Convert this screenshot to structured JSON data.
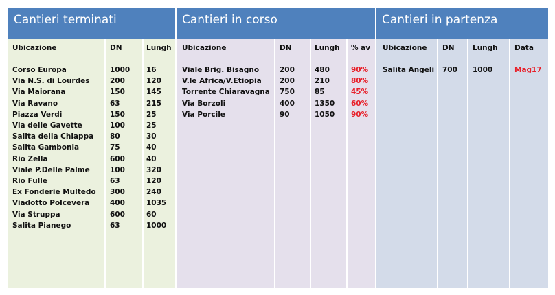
{
  "sections": [
    {
      "title": "Cantieri terminati",
      "columns": [
        "Ubicazione",
        "DN",
        "Lungh"
      ],
      "rows": [
        [
          "Corso Europa",
          1000,
          16
        ],
        [
          "Via N.S. di Lourdes",
          200,
          120
        ],
        [
          "Via Maiorana",
          150,
          145
        ],
        [
          "Via Ravano",
          63,
          215
        ],
        [
          "Piazza Verdi",
          150,
          25
        ],
        [
          "Via delle Gavette",
          100,
          25
        ],
        [
          "Salita della Chiappa",
          80,
          30
        ],
        [
          "Salita Gambonia",
          75,
          40
        ],
        [
          "Rio Zella",
          600,
          40
        ],
        [
          "Viale P.Delle Palme",
          100,
          320
        ],
        [
          "Rio Fulle",
          63,
          120
        ],
        [
          "Ex Fonderie Multedo",
          300,
          240
        ],
        [
          "Viadotto Polcevera",
          400,
          1035
        ],
        [
          "Via Struppa",
          600,
          60
        ],
        [
          "Salita Pianego",
          63,
          1000
        ]
      ]
    },
    {
      "title": "Cantieri in corso",
      "columns": [
        "Ubicazione",
        "DN",
        "Lungh",
        "% av"
      ],
      "rows": [
        [
          "Viale Brig. Bisagno",
          200,
          480,
          "90%"
        ],
        [
          "V.le Africa/V.Etiopia",
          200,
          210,
          "80%"
        ],
        [
          "Torrente Chiaravagna",
          750,
          85,
          "45%"
        ],
        [
          "Via Borzoli",
          400,
          1350,
          "60%"
        ],
        [
          "Via Porcile",
          90,
          1050,
          "90%"
        ]
      ]
    },
    {
      "title": "Cantieri in partenza",
      "columns": [
        "Ubicazione",
        "DN",
        "Lungh",
        "Data"
      ],
      "rows": [
        [
          "Salita Angeli",
          700,
          1000,
          "Mag17"
        ]
      ]
    }
  ]
}
